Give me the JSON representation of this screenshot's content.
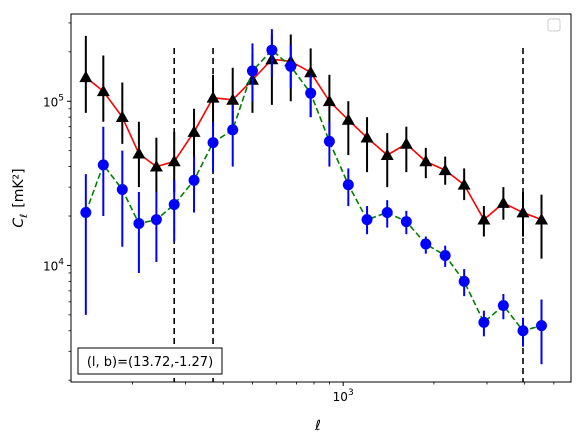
{
  "chart_data": {
    "type": "line",
    "title": "",
    "xlabel": "ℓ",
    "ylabel_main": "C",
    "ylabel_sub": "ℓ",
    "ylabel_unit": "[mK²]",
    "xscale": "log",
    "yscale": "log",
    "xlim": [
      125,
      5700
    ],
    "ylim": [
      1950,
      340000
    ],
    "x_major_ticks": [
      {
        "value": 1000,
        "base": "10",
        "exp": "3"
      }
    ],
    "y_major_ticks": [
      {
        "value": 10000,
        "base": "10",
        "exp": "4"
      },
      {
        "value": 100000,
        "base": "10",
        "exp": "5"
      }
    ],
    "x": [
      140,
      160,
      185,
      210,
      240,
      275,
      320,
      370,
      430,
      500,
      580,
      670,
      780,
      900,
      1040,
      1200,
      1400,
      1620,
      1880,
      2180,
      2520,
      2930,
      3400,
      3950,
      4550
    ],
    "series": [
      {
        "marker": "triangle",
        "color": "#000000",
        "line_color": "#ff0000",
        "line_style": "solid",
        "values": [
          140000,
          115000,
          80000,
          48000,
          40000,
          43000,
          65000,
          105000,
          102000,
          135000,
          180000,
          175000,
          150000,
          100000,
          77000,
          60000,
          47000,
          55000,
          43000,
          38000,
          31000,
          19000,
          24000,
          21000,
          19000
        ],
        "err_low": [
          85000,
          75000,
          55000,
          30000,
          28000,
          28000,
          45000,
          70000,
          65000,
          85000,
          95000,
          100000,
          80000,
          60000,
          47000,
          37000,
          30000,
          37000,
          34000,
          31000,
          25000,
          15000,
          19000,
          15000,
          11000
        ],
        "err_high": [
          250000,
          190000,
          130000,
          75000,
          60000,
          65000,
          90000,
          145000,
          160000,
          195000,
          255000,
          255000,
          210000,
          145000,
          100000,
          80000,
          64000,
          70000,
          52000,
          46000,
          39000,
          23000,
          30000,
          28000,
          27000
        ]
      },
      {
        "marker": "circle",
        "color": "#0000ff",
        "line_color": "#008000",
        "line_style": "dashed",
        "values": [
          21000,
          41000,
          29000,
          18000,
          19000,
          23500,
          33000,
          56000,
          67000,
          153000,
          205000,
          163000,
          112000,
          57000,
          31000,
          19000,
          21000,
          18500,
          13500,
          11500,
          8000,
          4500,
          5700,
          4000,
          4300
        ],
        "err_low": [
          5000,
          20000,
          13000,
          9000,
          10500,
          14000,
          21000,
          37000,
          40000,
          100000,
          140000,
          120000,
          80000,
          40000,
          23000,
          15500,
          17000,
          15500,
          11800,
          9800,
          6500,
          3700,
          4700,
          3200,
          2500
        ],
        "err_high": [
          36000,
          70000,
          50000,
          28000,
          28000,
          33000,
          46000,
          75000,
          95000,
          225000,
          275000,
          220000,
          145000,
          75000,
          39000,
          23000,
          25000,
          21500,
          15000,
          13200,
          9500,
          5300,
          6700,
          4800,
          6200
        ]
      }
    ],
    "vlines": [
      275,
      370,
      3950
    ],
    "annotation": "(l, b)=(13.72,-1.27)",
    "legend": "top-right"
  }
}
